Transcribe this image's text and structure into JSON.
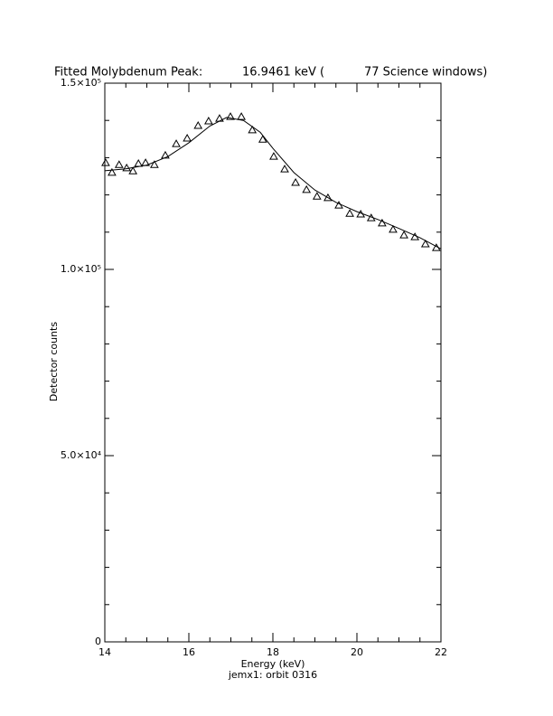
{
  "chart_data": {
    "type": "scatter",
    "title": [
      "Fitted Molybdenum Peak:",
      "16.9461 keV (",
      "77 Science windows)"
    ],
    "xlabel": "Energy (keV)",
    "subtitle": "jemx1: orbit 0316",
    "ylabel": "Detector counts",
    "x": [
      14.02,
      14.17,
      14.34,
      14.52,
      14.67,
      14.8,
      14.97,
      15.18,
      15.44,
      15.7,
      15.96,
      16.22,
      16.47,
      16.73,
      16.99,
      17.25,
      17.51,
      17.76,
      18.02,
      18.28,
      18.54,
      18.8,
      19.05,
      19.31,
      19.57,
      19.83,
      20.09,
      20.34,
      20.6,
      20.86,
      21.12,
      21.38,
      21.63,
      21.89
    ],
    "values": [
      128600,
      126000,
      128100,
      127200,
      126400,
      128400,
      128600,
      128100,
      130600,
      133700,
      135200,
      138600,
      139800,
      140500,
      141000,
      141000,
      137400,
      134900,
      130300,
      126900,
      123300,
      121400,
      119600,
      119200,
      117200,
      115000,
      114800,
      113800,
      112400,
      110700,
      109200,
      108700,
      106800,
      105800
    ],
    "fit": {
      "x": [
        14,
        14.5,
        15,
        15.5,
        16,
        16.5,
        16.9,
        17.3,
        17.7,
        18,
        18.5,
        19,
        19.5,
        20,
        20.5,
        21,
        21.5,
        22
      ],
      "values": [
        126500,
        127000,
        128000,
        130300,
        134000,
        138500,
        140800,
        140000,
        136800,
        132500,
        126000,
        121300,
        118000,
        115500,
        113400,
        111000,
        108500,
        105500
      ]
    },
    "xlim": [
      14,
      22
    ],
    "ylim": [
      0,
      150000
    ],
    "xticks": [
      14,
      16,
      18,
      20,
      22
    ],
    "x_minor_ticks": [
      14.5,
      15,
      15.5,
      16.5,
      17,
      17.5,
      18.5,
      19,
      19.5,
      20.5,
      21,
      21.5
    ],
    "yticks": [
      {
        "value": 0,
        "label": "0"
      },
      {
        "value": 50000,
        "label": "5.0×10⁴"
      },
      {
        "value": 100000,
        "label": "1.0×10⁵"
      },
      {
        "value": 150000,
        "label": "1.5×10⁵"
      }
    ],
    "y_minor_ticks": [
      10000,
      20000,
      30000,
      40000,
      60000,
      70000,
      80000,
      90000,
      110000,
      120000,
      130000,
      140000
    ]
  }
}
